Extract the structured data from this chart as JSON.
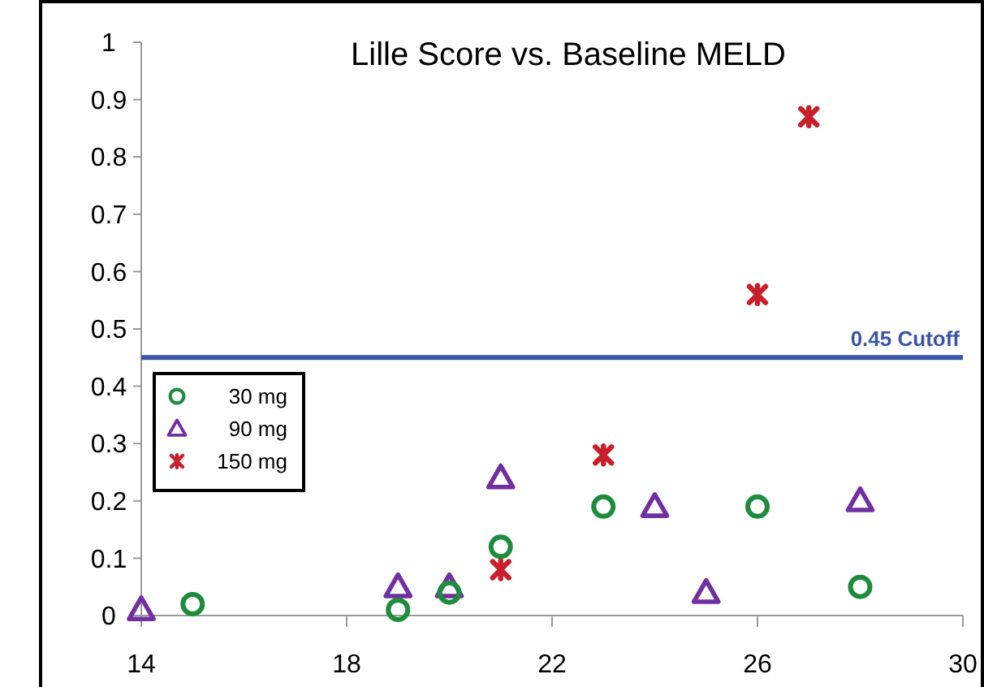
{
  "chart_data": {
    "type": "scatter",
    "title": "Lille Score vs. Baseline MELD",
    "xlim": [
      14,
      30
    ],
    "xticks": [
      14,
      18,
      22,
      26,
      30
    ],
    "ylim": [
      0,
      1
    ],
    "yticks": [
      0,
      0.1,
      0.2,
      0.3,
      0.4,
      0.5,
      0.6,
      0.7,
      0.8,
      0.9,
      1
    ],
    "grid": false,
    "legend": "left",
    "series": [
      {
        "name": "30 mg",
        "color": "#1e8c3c",
        "marker": "circle",
        "x": [
          15,
          19,
          20,
          21,
          23,
          26,
          28
        ],
        "values": [
          0.02,
          0.01,
          0.04,
          0.12,
          0.19,
          0.19,
          0.05
        ]
      },
      {
        "name": "90 mg",
        "color": "#7030a0",
        "marker": "triangle",
        "x": [
          14,
          19,
          20,
          21,
          24,
          25,
          28
        ],
        "values": [
          0.01,
          0.05,
          0.05,
          0.24,
          0.19,
          0.04,
          0.2
        ]
      },
      {
        "name": "150 mg",
        "color": "#c8202a",
        "marker": "cross",
        "x": [
          21,
          23,
          26,
          27
        ],
        "values": [
          0.08,
          0.28,
          0.56,
          0.87
        ]
      }
    ],
    "ref_lines": [
      {
        "axis": "y",
        "value": 0.45,
        "label": "0.45 Cutoff",
        "color": "#3a55a8"
      }
    ]
  }
}
